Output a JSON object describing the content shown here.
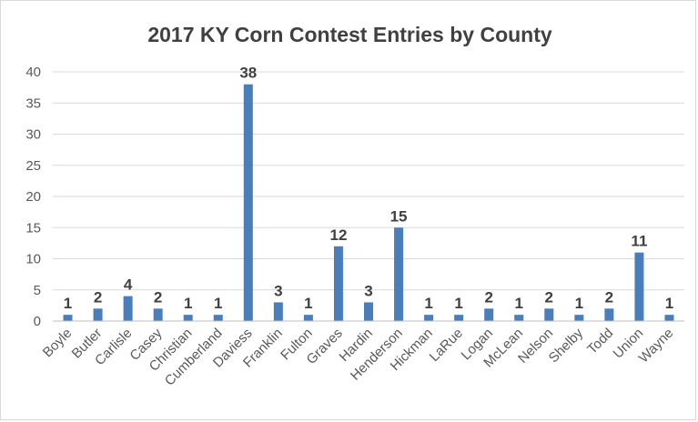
{
  "chart_data": {
    "type": "bar",
    "title": "2017 KY Corn Contest Entries by County",
    "xlabel": "",
    "ylabel": "",
    "categories": [
      "Boyle",
      "Butler",
      "Carlisle",
      "Casey",
      "Christian",
      "Cumberland",
      "Daviess",
      "Franklin",
      "Fulton",
      "Graves",
      "Hardin",
      "Henderson",
      "Hickman",
      "LaRue",
      "Logan",
      "McLean",
      "Nelson",
      "Shelby",
      "Todd",
      "Union",
      "Wayne"
    ],
    "values": [
      1,
      2,
      4,
      2,
      1,
      1,
      38,
      3,
      1,
      12,
      3,
      15,
      1,
      1,
      2,
      1,
      2,
      1,
      2,
      11,
      1
    ],
    "ylim": [
      0,
      40
    ],
    "yticks": [
      0,
      5,
      10,
      15,
      20,
      25,
      30,
      35,
      40
    ],
    "grid": true,
    "data_labels": true,
    "bar_color": "#4a7ebb"
  }
}
